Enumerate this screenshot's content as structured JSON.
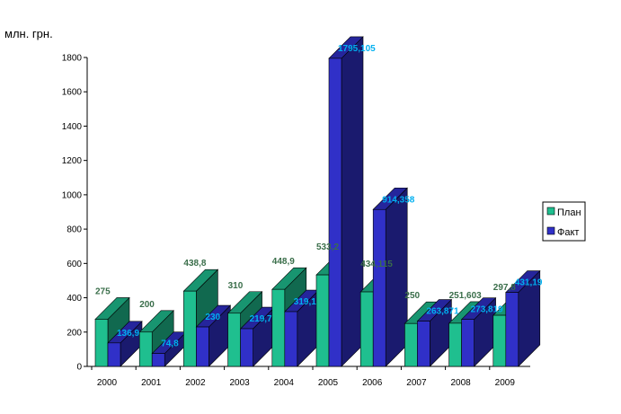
{
  "chart_data": {
    "type": "bar",
    "unit_label": "млн. грн.",
    "categories": [
      "2000",
      "2001",
      "2002",
      "2003",
      "2004",
      "2005",
      "2006",
      "2007",
      "2008",
      "2009"
    ],
    "series": [
      {
        "name": "План",
        "values": [
          275,
          200,
          438.8,
          310,
          448.9,
          533.2,
          434.115,
          250,
          251.603,
          297.8
        ],
        "labels": [
          "275",
          "200",
          "438,8",
          "310",
          "448,9",
          "533,2",
          "434,115",
          "250",
          "251,603",
          "297,8"
        ],
        "color": "#1fbf8f",
        "label_color": "#3a6e4a"
      },
      {
        "name": "Факт",
        "values": [
          136.9,
          74.8,
          230,
          219.7,
          319.1,
          1795.105,
          914.358,
          263.871,
          273.819,
          431.19
        ],
        "labels": [
          "136,9",
          "74,8",
          "230",
          "219,7",
          "319,1",
          "1795,105",
          "914,358",
          "263,871",
          "273,819",
          "431,19"
        ],
        "color": "#3030c8",
        "label_color": "#00b0f0"
      }
    ],
    "ylim": [
      0,
      1800
    ],
    "yticks": [
      0,
      200,
      400,
      600,
      800,
      1000,
      1200,
      1400,
      1600,
      1800
    ],
    "legend_position": "right",
    "grid": false
  }
}
